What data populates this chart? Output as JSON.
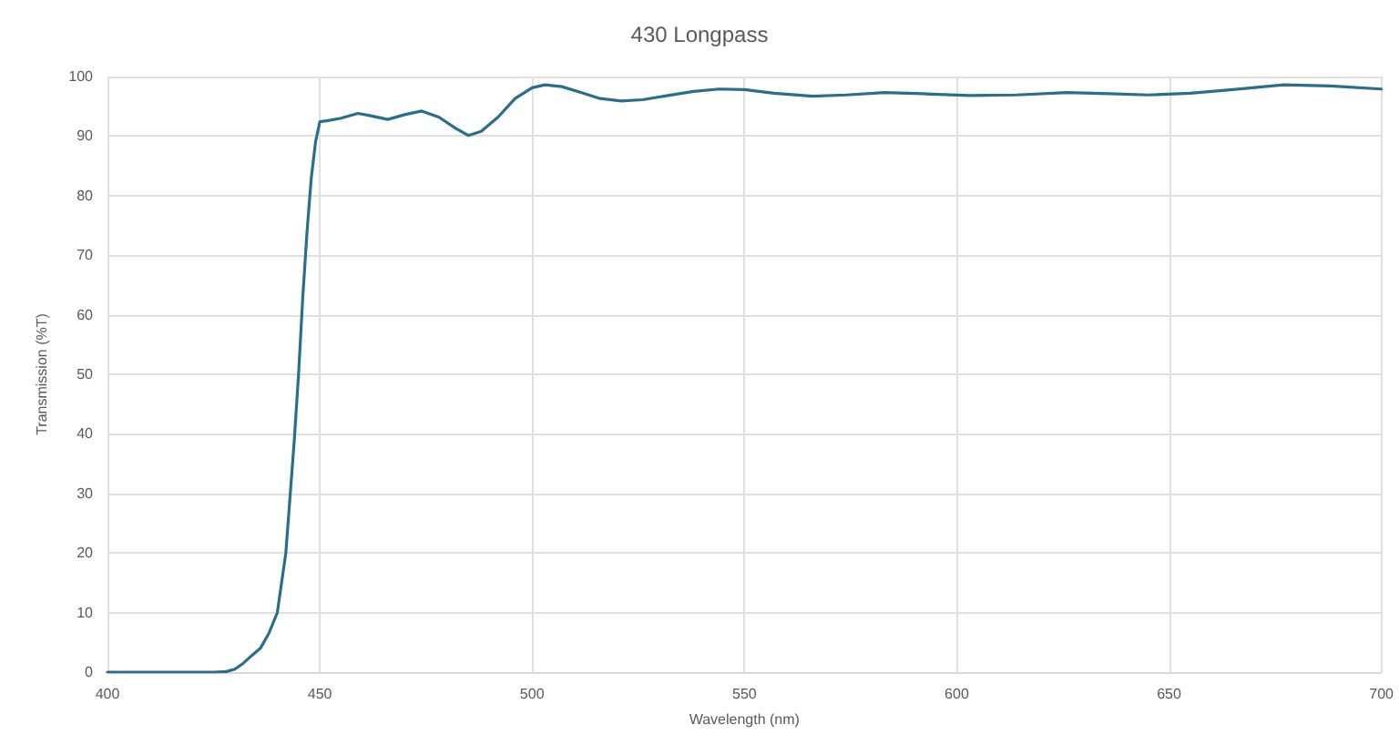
{
  "chart_data": {
    "type": "line",
    "title": "430 Longpass",
    "xlabel": "Wavelength (nm)",
    "ylabel": "Transmission (%T)",
    "x": [
      400,
      410,
      420,
      425,
      428,
      430,
      432,
      434,
      436,
      438,
      440,
      442,
      444,
      445,
      446,
      447,
      448,
      449,
      450,
      452,
      455,
      459,
      462,
      466,
      470,
      474,
      478,
      482,
      485,
      488,
      492,
      496,
      500,
      503,
      507,
      512,
      516,
      521,
      526,
      532,
      538,
      544,
      550,
      557,
      566,
      574,
      583,
      592,
      603,
      614,
      626,
      636,
      645,
      655,
      665,
      677,
      688,
      700
    ],
    "series": [
      {
        "color": "#2b6e8c",
        "values": [
          0,
          0,
          0,
          0,
          0.1,
          0.5,
          1.5,
          2.8,
          4,
          6.5,
          10,
          20,
          39,
          50,
          63,
          74,
          83,
          89,
          92.4,
          92.6,
          93,
          93.8,
          93.4,
          92.8,
          93.6,
          94.2,
          93.2,
          91.3,
          90.1,
          90.8,
          93.2,
          96.3,
          98.1,
          98.6,
          98.3,
          97.2,
          96.3,
          95.9,
          96.1,
          96.8,
          97.5,
          97.9,
          97.8,
          97.2,
          96.7,
          96.9,
          97.3,
          97.1,
          96.8,
          96.9,
          97.3,
          97.1,
          96.9,
          97.2,
          97.8,
          98.6,
          98.4,
          97.9
        ]
      }
    ],
    "xlim": [
      400,
      700
    ],
    "xticks": [
      400,
      450,
      500,
      550,
      600,
      650,
      700
    ],
    "ylim": [
      0,
      100
    ],
    "yticks": [
      0,
      10,
      20,
      30,
      40,
      50,
      60,
      70,
      80,
      90,
      100
    ],
    "grid": true,
    "marker": "none",
    "line_style": "solid"
  }
}
